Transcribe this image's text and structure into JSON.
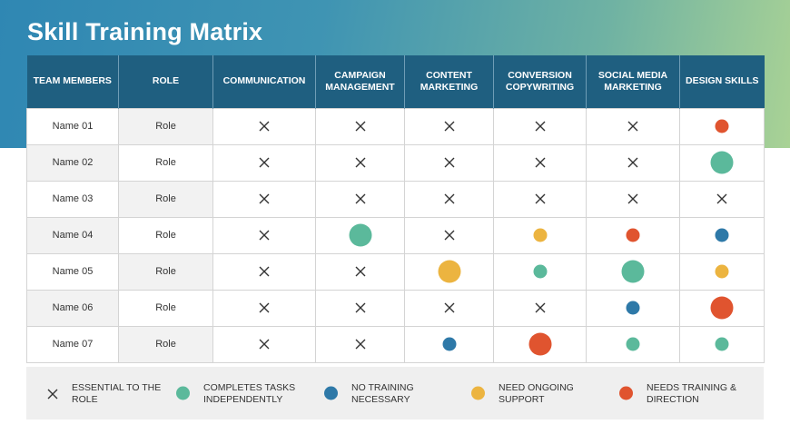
{
  "title": "Skill Training Matrix",
  "colors": {
    "green": "#5bb99b",
    "blue": "#2e79a8",
    "yellow": "#ecb440",
    "red": "#e0542f",
    "header_bg": "#1f5f80"
  },
  "headers": [
    "TEAM MEMBERS",
    "ROLE",
    "COMMUNICATION",
    "CAMPAIGN MANAGEMENT",
    "CONTENT MARKETING",
    "CONVERSION COPYWRITING",
    "SOCIAL  MEDIA MARKETING",
    "DESIGN SKILLS"
  ],
  "rows": [
    {
      "name": "Name 01",
      "role": "Role",
      "skills": [
        "x",
        "x",
        "x",
        "x",
        "x",
        "red-s"
      ]
    },
    {
      "name": "Name 02",
      "role": "Role",
      "skills": [
        "x",
        "x",
        "x",
        "x",
        "x",
        "green-l"
      ]
    },
    {
      "name": "Name 03",
      "role": "Role",
      "skills": [
        "x",
        "x",
        "x",
        "x",
        "x",
        "x"
      ]
    },
    {
      "name": "Name 04",
      "role": "Role",
      "skills": [
        "x",
        "green-l",
        "x",
        "yellow-s",
        "red-s",
        "blue-s"
      ]
    },
    {
      "name": "Name 05",
      "role": "Role",
      "skills": [
        "x",
        "x",
        "yellow-l",
        "green-s",
        "green-l",
        "yellow-s"
      ]
    },
    {
      "name": "Name 06",
      "role": "Role",
      "skills": [
        "x",
        "x",
        "x",
        "x",
        "blue-s",
        "red-l"
      ]
    },
    {
      "name": "Name 07",
      "role": "Role",
      "skills": [
        "x",
        "x",
        "blue-s",
        "red-l",
        "green-s",
        "green-s"
      ]
    }
  ],
  "legend": [
    {
      "key": "x",
      "label": "ESSENTIAL TO THE ROLE"
    },
    {
      "key": "green",
      "label": "COMPLETES TASKS INDEPENDENTLY"
    },
    {
      "key": "blue",
      "label": "NO TRAINING NECESSARY"
    },
    {
      "key": "yellow",
      "label": "NEED ONGOING SUPPORT"
    },
    {
      "key": "red",
      "label": "NEEDS TRAINING & DIRECTION"
    }
  ]
}
